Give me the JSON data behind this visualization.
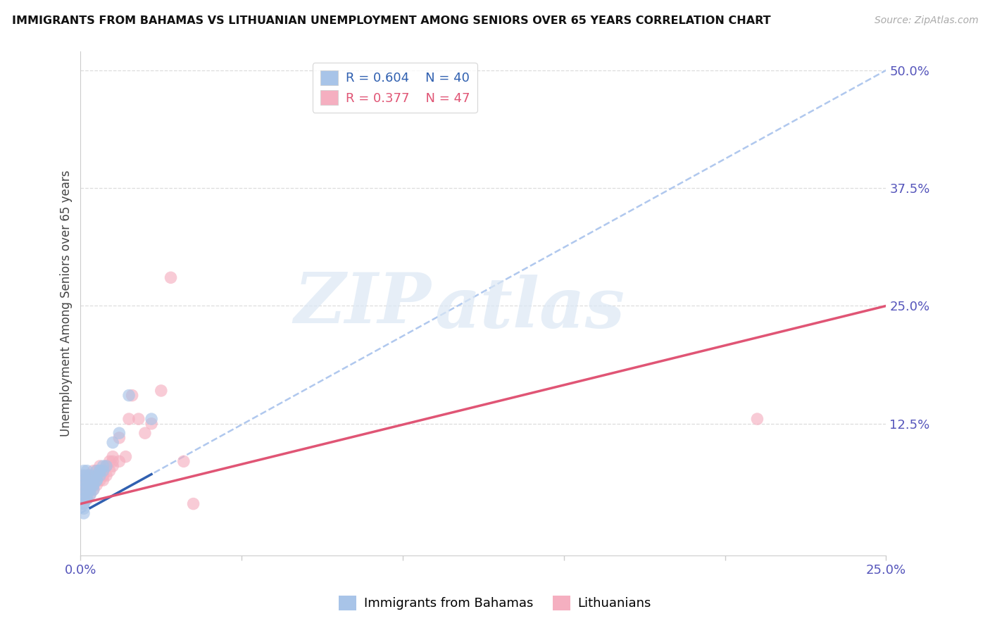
{
  "title": "IMMIGRANTS FROM BAHAMAS VS LITHUANIAN UNEMPLOYMENT AMONG SENIORS OVER 65 YEARS CORRELATION CHART",
  "source": "Source: ZipAtlas.com",
  "ylabel": "Unemployment Among Seniors over 65 years",
  "right_yticks": [
    "50.0%",
    "37.5%",
    "25.0%",
    "12.5%"
  ],
  "right_ytick_vals": [
    0.5,
    0.375,
    0.25,
    0.125
  ],
  "xlim": [
    0.0,
    0.25
  ],
  "ylim": [
    -0.015,
    0.52
  ],
  "blue_R": 0.604,
  "blue_N": 40,
  "pink_R": 0.377,
  "pink_N": 47,
  "blue_color": "#a8c4e8",
  "pink_color": "#f5afc0",
  "blue_line_color": "#3060b0",
  "pink_line_color": "#e05575",
  "blue_dashed_color": "#b0c8ee",
  "legend_label_blue": "Immigrants from Bahamas",
  "legend_label_pink": "Lithuanians",
  "watermark_zip": "ZIP",
  "watermark_atlas": "atlas",
  "blue_x": [
    0.001,
    0.001,
    0.001,
    0.001,
    0.001,
    0.001,
    0.001,
    0.001,
    0.002,
    0.002,
    0.002,
    0.002,
    0.002,
    0.002,
    0.003,
    0.003,
    0.003,
    0.004,
    0.004,
    0.005,
    0.005,
    0.005,
    0.006,
    0.006,
    0.007,
    0.008,
    0.001,
    0.001,
    0.001,
    0.002,
    0.003,
    0.004,
    0.004,
    0.005,
    0.006,
    0.007,
    0.01,
    0.012,
    0.015,
    0.022
  ],
  "blue_y": [
    0.055,
    0.045,
    0.06,
    0.05,
    0.04,
    0.065,
    0.07,
    0.075,
    0.05,
    0.055,
    0.06,
    0.065,
    0.07,
    0.075,
    0.055,
    0.06,
    0.07,
    0.06,
    0.065,
    0.065,
    0.07,
    0.075,
    0.07,
    0.075,
    0.075,
    0.08,
    0.035,
    0.04,
    0.03,
    0.045,
    0.05,
    0.055,
    0.06,
    0.065,
    0.075,
    0.08,
    0.105,
    0.115,
    0.155,
    0.13
  ],
  "pink_x": [
    0.001,
    0.001,
    0.001,
    0.001,
    0.001,
    0.002,
    0.002,
    0.002,
    0.002,
    0.003,
    0.003,
    0.003,
    0.003,
    0.003,
    0.004,
    0.004,
    0.004,
    0.004,
    0.005,
    0.005,
    0.005,
    0.006,
    0.006,
    0.006,
    0.007,
    0.007,
    0.007,
    0.008,
    0.008,
    0.009,
    0.009,
    0.01,
    0.01,
    0.01,
    0.012,
    0.012,
    0.014,
    0.015,
    0.016,
    0.018,
    0.02,
    0.022,
    0.025,
    0.028,
    0.032,
    0.035,
    0.21
  ],
  "pink_y": [
    0.055,
    0.05,
    0.06,
    0.065,
    0.07,
    0.045,
    0.055,
    0.065,
    0.07,
    0.05,
    0.055,
    0.06,
    0.065,
    0.07,
    0.055,
    0.06,
    0.065,
    0.075,
    0.06,
    0.065,
    0.075,
    0.065,
    0.07,
    0.08,
    0.065,
    0.07,
    0.075,
    0.07,
    0.08,
    0.075,
    0.085,
    0.08,
    0.085,
    0.09,
    0.085,
    0.11,
    0.09,
    0.13,
    0.155,
    0.13,
    0.115,
    0.125,
    0.16,
    0.28,
    0.085,
    0.04,
    0.13
  ],
  "blue_line_x0": 0.0,
  "blue_line_x1": 0.25,
  "blue_line_y0": 0.03,
  "blue_line_y1": 0.5,
  "pink_line_x0": 0.0,
  "pink_line_x1": 0.25,
  "pink_line_y0": 0.04,
  "pink_line_y1": 0.25
}
